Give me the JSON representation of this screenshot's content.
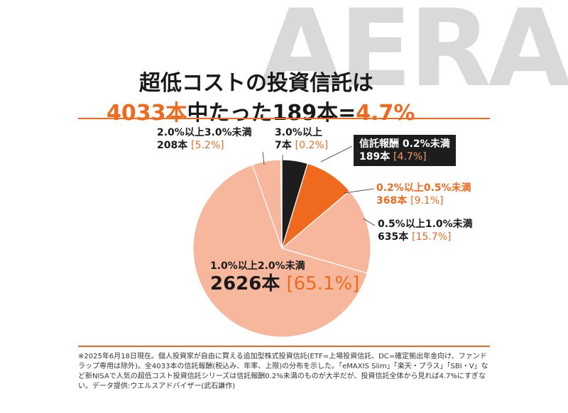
{
  "logo": "AERA",
  "title": {
    "line1": "超低コストの投資信託は",
    "line2_a": "4033本",
    "line2_b": "中たった",
    "line2_c": "189本=",
    "line2_d": "4.7%"
  },
  "chart_data": {
    "type": "pie",
    "title": "超低コストの投資信託は4033本中たった189本=4.7%",
    "total": 4033,
    "slices": [
      {
        "label_a": "信託報酬",
        "label_b": "0.2%未満",
        "count": "189本",
        "pct_text": "[4.7%]",
        "value": 4.7,
        "color": "#1d1d1d"
      },
      {
        "label_a": "0.2%以上0.5%未満",
        "count": "368本",
        "pct_text": "[9.1%]",
        "value": 9.1,
        "color": "#ef6a1f"
      },
      {
        "label_a": "0.5%以上1.0%未満",
        "count": "635本",
        "pct_text": "[15.7%]",
        "value": 15.7,
        "color": "#f6b79c"
      },
      {
        "label_a": "1.0%以上2.0%未満",
        "count": "2626本",
        "pct_text": "[65.1%]",
        "value": 65.1,
        "color": "#f6b79c"
      },
      {
        "label_a": "2.0%以上3.0%未満",
        "count": "208本",
        "pct_text": "[5.2%]",
        "value": 5.2,
        "color": "#f6b79c"
      },
      {
        "label_a": "3.0%以上",
        "count": "7本",
        "pct_text": "[0.2%]",
        "value": 0.2,
        "color": "#f6b79c"
      }
    ]
  },
  "note": "※2025年6月18日現在。個人投資家が自由に買える追加型株式投資信託(ETF=上場投資信託、DC=確定拠出年金向け、ファンドラップ専用は除外)。全4033本の信託報酬(税込み、年率、上限)の分布を示した。「eMAXIS Slim」「楽天・プラス」「SBI・V」など新NISAで人気の超低コスト投資信託シリーズは信託報酬0.2%未満のものが大半だが、投資信託全体から見れば4.7%にすぎない。データ提供:ウエルスアドバイザー(武石謙作)"
}
